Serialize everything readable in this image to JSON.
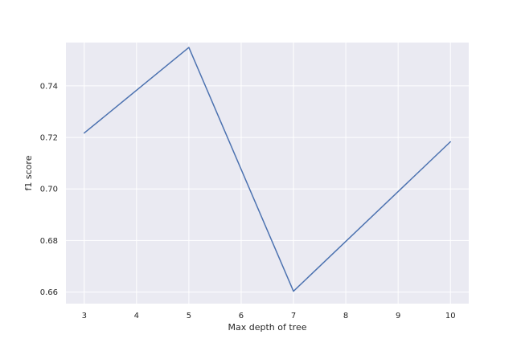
{
  "chart_data": {
    "type": "line",
    "title": "",
    "xlabel": "Max depth of tree",
    "ylabel": "f1 score",
    "x": [
      3,
      5,
      7,
      10
    ],
    "series": [
      {
        "values": [
          0.7217,
          0.7549,
          0.6603,
          0.7183
        ]
      }
    ],
    "xlim": [
      2.65,
      10.35
    ],
    "ylim": [
      0.6555,
      0.7568
    ],
    "xticks": [
      3,
      4,
      5,
      6,
      7,
      8,
      9,
      10
    ],
    "xtick_labels": [
      "3",
      "4",
      "5",
      "6",
      "7",
      "8",
      "9",
      "10"
    ],
    "yticks": [
      0.66,
      0.68,
      0.7,
      0.72,
      0.74
    ],
    "ytick_labels": [
      "0.66",
      "0.68",
      "0.70",
      "0.72",
      "0.74"
    ],
    "grid": true,
    "style": {
      "background": "#eaeaf2",
      "grid_color": "#ffffff",
      "line_color": "#4c72b0",
      "text_color": "#262626"
    }
  }
}
